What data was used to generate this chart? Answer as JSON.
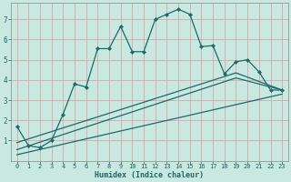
{
  "xlabel": "Humidex (Indice chaleur)",
  "bg_color": "#c8e8e0",
  "grid_color_x": "#e8b0b0",
  "grid_color_y": "#e8b0b0",
  "line_color": "#1a6b6b",
  "tick_color": "#1a6b6b",
  "xlim": [
    -0.5,
    23.5
  ],
  "ylim": [
    0,
    7.8
  ],
  "xtick_labels": [
    "0",
    "1",
    "2",
    "3",
    "4",
    "5",
    "6",
    "7",
    "8",
    "9",
    "10",
    "11",
    "12",
    "13",
    "14",
    "15",
    "16",
    "17",
    "18",
    "19",
    "20",
    "21",
    "22",
    "23"
  ],
  "xtick_pos": [
    0,
    1,
    2,
    3,
    4,
    5,
    6,
    7,
    8,
    9,
    10,
    11,
    12,
    13,
    14,
    15,
    16,
    17,
    18,
    19,
    20,
    21,
    22,
    23
  ],
  "ytick_pos": [
    1,
    2,
    3,
    4,
    5,
    6,
    7
  ],
  "ytick_labels": [
    "1",
    "2",
    "3",
    "4",
    "5",
    "6",
    "7"
  ],
  "line1_x": [
    0,
    1,
    2,
    3,
    4,
    5,
    6,
    7,
    8,
    9,
    10,
    11,
    12,
    13,
    14,
    15,
    16,
    17,
    18,
    19,
    20,
    21,
    22,
    23
  ],
  "line1_y": [
    1.7,
    0.75,
    0.65,
    1.0,
    2.3,
    3.8,
    3.65,
    5.55,
    5.55,
    6.65,
    5.4,
    5.4,
    7.0,
    7.25,
    7.5,
    7.25,
    5.65,
    5.7,
    4.3,
    4.9,
    5.0,
    4.4,
    3.5,
    3.5
  ],
  "line2_x": [
    0,
    19,
    23
  ],
  "line2_y": [
    0.9,
    4.35,
    3.5
  ],
  "line3_x": [
    0,
    19,
    23
  ],
  "line3_y": [
    0.55,
    4.1,
    3.5
  ],
  "line4_x": [
    0,
    23
  ],
  "line4_y": [
    0.3,
    3.3
  ]
}
